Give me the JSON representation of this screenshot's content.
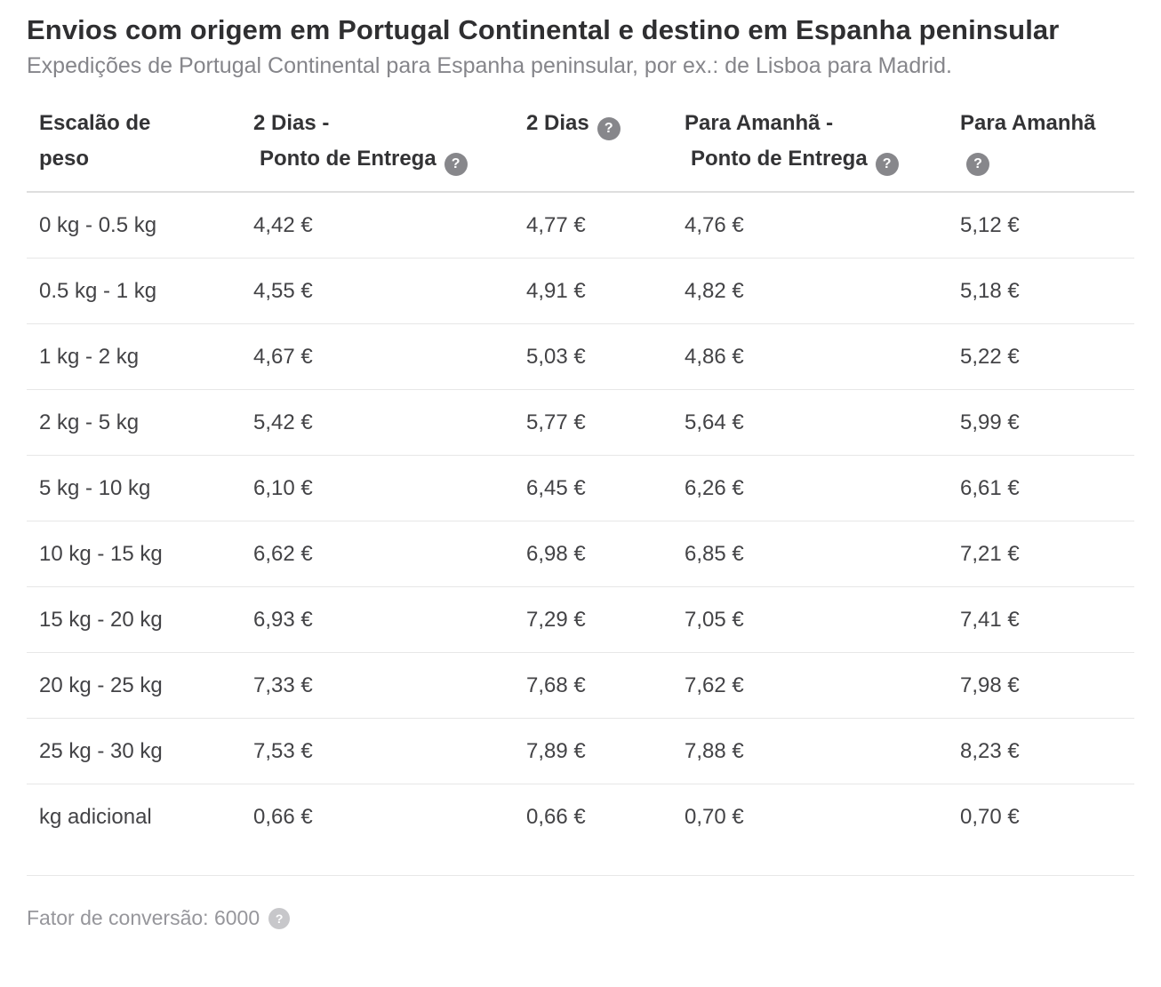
{
  "page": {
    "title": "Envios com origem em Portugal Continental e destino em Espanha peninsular",
    "subtitle": "Expedições de Portugal Continental para Espanha peninsular, por ex.: de Lisboa para Madrid."
  },
  "icons": {
    "help_glyph": "?"
  },
  "table": {
    "columns": [
      {
        "line1": "Escalão de",
        "line2": "peso",
        "has_help": false
      },
      {
        "line1": "2 Dias -",
        "line2": "Ponto de Entrega",
        "has_help": true
      },
      {
        "line1": "",
        "line2": "2 Dias",
        "has_help": true
      },
      {
        "line1": "Para Amanhã -",
        "line2": "Ponto de Entrega",
        "has_help": true
      },
      {
        "line1": "Para Amanhã",
        "line2": "",
        "has_help": true
      }
    ],
    "rows": [
      {
        "weight": "0 kg - 0.5 kg",
        "values": [
          "4,42 €",
          "4,77 €",
          "4,76 €",
          "5,12 €"
        ]
      },
      {
        "weight": "0.5 kg - 1 kg",
        "values": [
          "4,55 €",
          "4,91 €",
          "4,82 €",
          "5,18 €"
        ]
      },
      {
        "weight": "1 kg - 2 kg",
        "values": [
          "4,67 €",
          "5,03 €",
          "4,86 €",
          "5,22 €"
        ]
      },
      {
        "weight": "2 kg - 5 kg",
        "values": [
          "5,42 €",
          "5,77 €",
          "5,64 €",
          "5,99 €"
        ]
      },
      {
        "weight": "5 kg - 10 kg",
        "values": [
          "6,10 €",
          "6,45 €",
          "6,26 €",
          "6,61 €"
        ]
      },
      {
        "weight": "10 kg - 15 kg",
        "values": [
          "6,62 €",
          "6,98 €",
          "6,85 €",
          "7,21 €"
        ]
      },
      {
        "weight": "15 kg - 20 kg",
        "values": [
          "6,93 €",
          "7,29 €",
          "7,05 €",
          "7,41 €"
        ]
      },
      {
        "weight": "20 kg - 25 kg",
        "values": [
          "7,33 €",
          "7,68 €",
          "7,62 €",
          "7,98 €"
        ]
      },
      {
        "weight": "25 kg - 30 kg",
        "values": [
          "7,53 €",
          "7,89 €",
          "7,88 €",
          "8,23 €"
        ]
      },
      {
        "weight": "kg adicional",
        "values": [
          "0,66 €",
          "0,66 €",
          "0,70 €",
          "0,70 €"
        ]
      }
    ]
  },
  "footer": {
    "conversion_factor_text": "Fator de conversão: 6000"
  },
  "colors": {
    "title_text": "#2f2f31",
    "subtitle_text": "#85858a",
    "header_text": "#333335",
    "cell_text": "#434346",
    "divider": "#e7e7e7",
    "help_icon_bg": "#87878b",
    "help_icon_light_bg": "#c7c7ca"
  }
}
